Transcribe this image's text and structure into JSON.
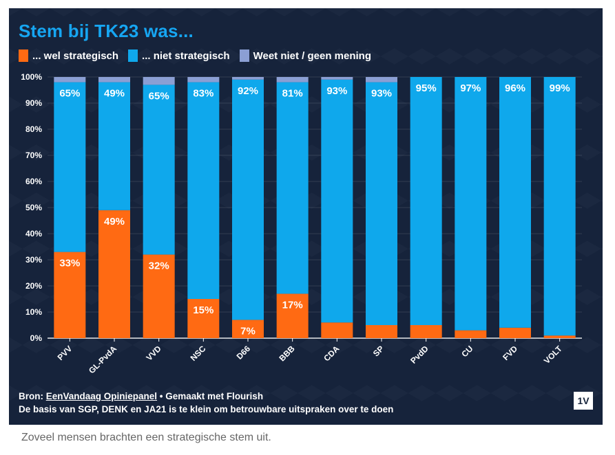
{
  "title": "Stem bij TK23 was...",
  "legend": [
    {
      "label": "... wel strategisch",
      "color": "#ff6a13"
    },
    {
      "label": "... niet strategisch",
      "color": "#0fa8ec"
    },
    {
      "label": "Weet niet / geen mening",
      "color": "#8b9fd4"
    }
  ],
  "footer": {
    "source_prefix": "Bron: ",
    "source_link": "EenVandaag Opiniepanel",
    "source_suffix": " • Gemaakt met Flourish",
    "note": "De basis van SGP, DENK en JA21 is te klein om betrouwbare uitspraken over te doen",
    "logo": "1V"
  },
  "caption": "Zoveel mensen brachten een strategische stem uit.",
  "chart_data": {
    "type": "bar",
    "stacked": true,
    "title": "Stem bij TK23 was...",
    "categories": [
      "PVV",
      "GL-PvdA",
      "VVD",
      "NSC",
      "D66",
      "BBB",
      "CDA",
      "SP",
      "PvdD",
      "CU",
      "FVD",
      "VOLT"
    ],
    "series": [
      {
        "name": "... wel strategisch",
        "values": [
          33,
          49,
          32,
          15,
          7,
          17,
          6,
          5,
          5,
          3,
          4,
          1
        ],
        "labels": [
          "33%",
          "49%",
          "32%",
          "15%",
          "7%",
          "17%",
          "",
          "",
          "",
          "",
          "",
          ""
        ]
      },
      {
        "name": "... niet strategisch",
        "values": [
          65,
          49,
          65,
          83,
          92,
          81,
          93,
          93,
          95,
          97,
          96,
          99
        ],
        "labels": [
          "65%",
          "49%",
          "65%",
          "83%",
          "92%",
          "81%",
          "93%",
          "93%",
          "95%",
          "97%",
          "96%",
          "99%"
        ]
      },
      {
        "name": "Weet niet / geen mening",
        "values": [
          2,
          2,
          3,
          2,
          1,
          2,
          1,
          2,
          0,
          0,
          0,
          0
        ]
      }
    ],
    "ylim": [
      0,
      100
    ],
    "yticks": [
      "0%",
      "10%",
      "20%",
      "30%",
      "40%",
      "50%",
      "60%",
      "70%",
      "80%",
      "90%",
      "100%"
    ],
    "xlabel": "",
    "ylabel": "",
    "grid": true,
    "legend_position": "top-left"
  }
}
